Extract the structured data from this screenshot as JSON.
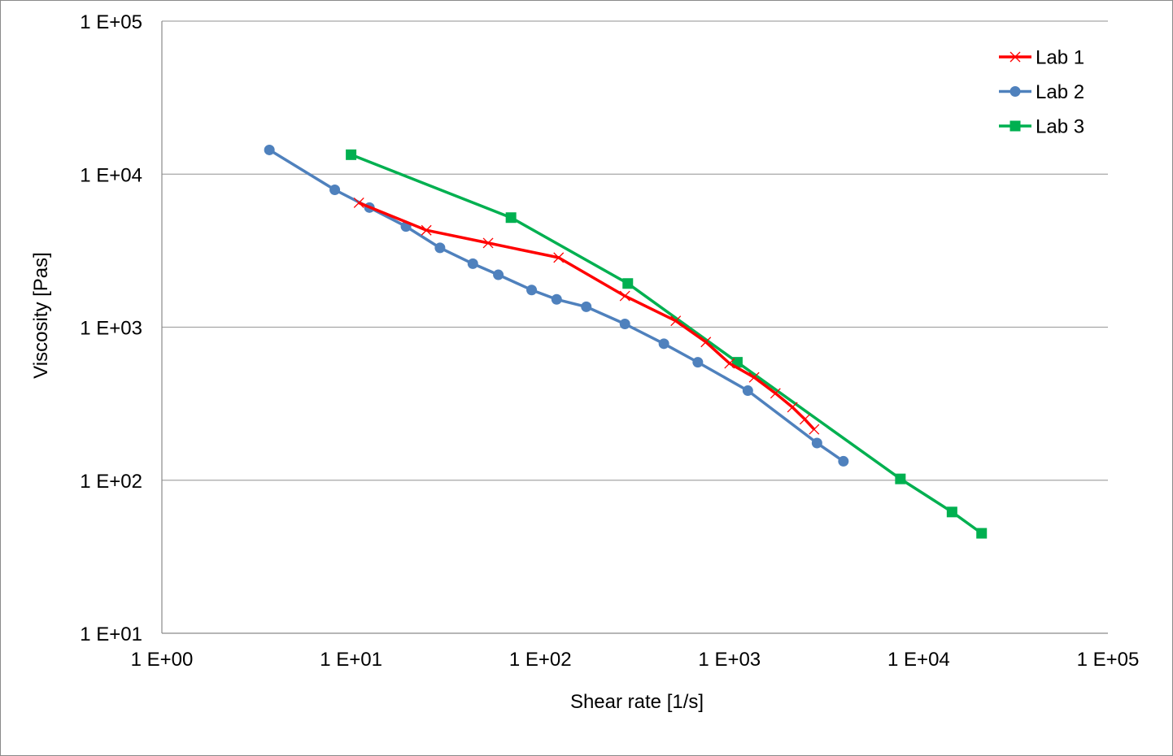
{
  "chart_data": {
    "type": "line",
    "xscale": "log",
    "yscale": "log",
    "xlabel": "Shear rate   [1/s]",
    "ylabel": "Viscosity   [Pas]",
    "xlim": [
      1,
      100000
    ],
    "ylim": [
      10,
      100000
    ],
    "x_tick_labels": [
      "1 E+00",
      "1 E+01",
      "1 E+02",
      "1 E+03",
      "1 E+04",
      "1 E+05"
    ],
    "y_tick_labels": [
      "1 E+01",
      "1 E+02",
      "1 E+03",
      "1 E+04",
      "1 E+05"
    ],
    "x_ticks": [
      1,
      10,
      100,
      1000,
      10000,
      100000
    ],
    "y_ticks": [
      10,
      100,
      1000,
      10000,
      100000
    ],
    "grid": "horizontal major gridlines",
    "legend": "top-right",
    "series": [
      {
        "name": "Lab 1",
        "color": "#ff0000",
        "marker": "x",
        "points": [
          [
            11,
            6500
          ],
          [
            25,
            4300
          ],
          [
            53,
            3550
          ],
          [
            125,
            2850
          ],
          [
            280,
            1600
          ],
          [
            520,
            1100
          ],
          [
            750,
            800
          ],
          [
            1000,
            580
          ],
          [
            1350,
            470
          ],
          [
            1750,
            370
          ],
          [
            2150,
            300
          ],
          [
            2500,
            250
          ],
          [
            2800,
            215
          ]
        ]
      },
      {
        "name": "Lab 2",
        "color": "#4f81bd",
        "marker": "circle",
        "points": [
          [
            3.7,
            14400
          ],
          [
            8.2,
            7900
          ],
          [
            12.5,
            6050
          ],
          [
            19.5,
            4550
          ],
          [
            29.5,
            3300
          ],
          [
            44,
            2600
          ],
          [
            60,
            2200
          ],
          [
            90,
            1750
          ],
          [
            122,
            1520
          ],
          [
            175,
            1360
          ],
          [
            280,
            1050
          ],
          [
            450,
            780
          ],
          [
            680,
            590
          ],
          [
            1250,
            385
          ],
          [
            2900,
            175
          ],
          [
            4000,
            133
          ]
        ]
      },
      {
        "name": "Lab 3",
        "color": "#00b050",
        "marker": "square",
        "points": [
          [
            10,
            13400
          ],
          [
            70,
            5200
          ],
          [
            290,
            1930
          ],
          [
            1100,
            590
          ],
          [
            8000,
            102
          ],
          [
            15000,
            62
          ],
          [
            21500,
            45
          ]
        ]
      }
    ]
  }
}
